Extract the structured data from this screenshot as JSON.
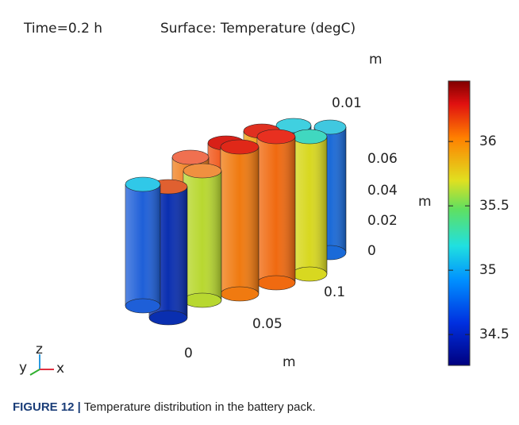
{
  "header": {
    "time": "Time=0.2 h",
    "surface": "Surface: Temperature (degC)"
  },
  "axes": {
    "y_unit": "m",
    "y_ticks": [
      "0.01"
    ],
    "z_ticks": [
      "0.06",
      "0.04",
      "0.02",
      "0"
    ],
    "z_unit": "m",
    "x_ticks": [
      "0.1",
      "0.05",
      "0"
    ],
    "x_unit": "m"
  },
  "triad": {
    "z": "z",
    "y": "y",
    "x": "x"
  },
  "colorbar": {
    "range": [
      34.26,
      36.47
    ],
    "ticks": [
      36,
      35.5,
      35,
      34.5
    ]
  },
  "caption": {
    "label": "FIGURE 12 |",
    "text": "Temperature distribution in the battery pack."
  }
}
